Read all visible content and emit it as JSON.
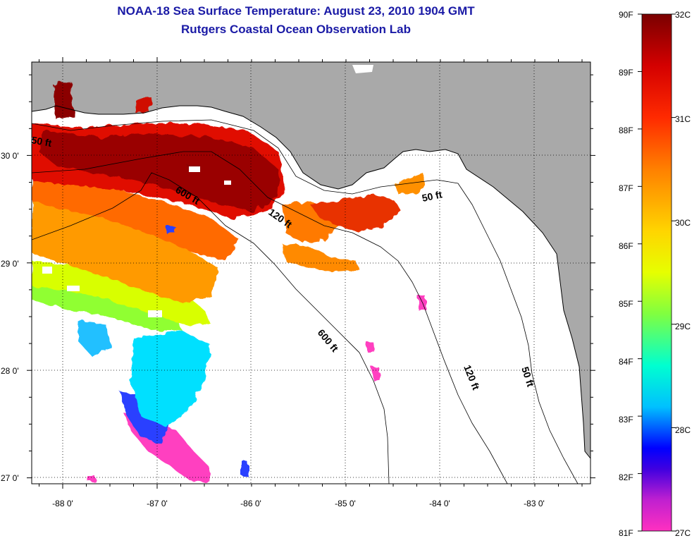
{
  "title": {
    "line1": "NOAA-18 Sea Surface Temperature:  August 23, 2010 1904 GMT",
    "line2": "Rutgers Coastal Ocean Observation Lab"
  },
  "axes": {
    "lon_ticks": [
      "-88 0'",
      "-87 0'",
      "-86 0'",
      "-85 0'",
      "-84 0'",
      "-83 0'"
    ],
    "lat_ticks": [
      "30 0'",
      "29 0'",
      "28 0'",
      "27 0'"
    ]
  },
  "contours": {
    "label_50_west": "50 ft",
    "label_600_north": "600 ft",
    "label_120_north": "120 ft",
    "label_50_east": "50 ft",
    "label_600_south": "600 ft",
    "label_120_south": "120 ft",
    "label_50_south": "50 ft"
  },
  "colorbar": {
    "fahrenheit": [
      "90F",
      "89F",
      "88F",
      "87F",
      "86F",
      "85F",
      "84F",
      "83F",
      "82F",
      "81F"
    ],
    "celsius": [
      "32C",
      "31C",
      "30C",
      "29C",
      "28C",
      "27C"
    ]
  },
  "colors": {
    "land": "#a9a9a9",
    "title": "#1a1aa6",
    "hot": "#8b0000",
    "cold": "#ff33cc"
  }
}
